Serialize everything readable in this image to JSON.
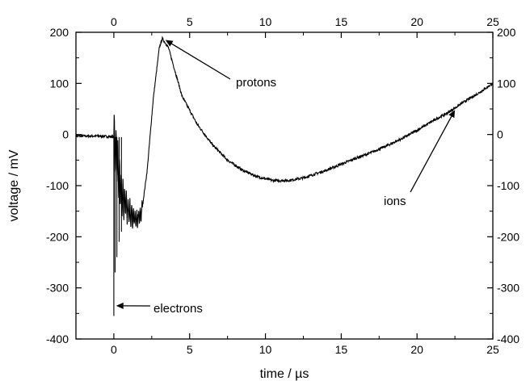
{
  "chart_data": {
    "type": "line",
    "title": "",
    "xlabel": "time / µs",
    "ylabel": "voltage / mV",
    "xlim": [
      -2.5,
      25
    ],
    "ylim": [
      -400,
      200
    ],
    "x_ticks": [
      0,
      5,
      10,
      15,
      20,
      25
    ],
    "y_ticks": [
      -400,
      -300,
      -200,
      -100,
      0,
      100,
      200
    ],
    "x_tick_labels": [
      "0",
      "5",
      "10",
      "15",
      "20",
      "25"
    ],
    "y_tick_labels": [
      "-400",
      "-300",
      "-200",
      "-100",
      "0",
      "100",
      "200"
    ],
    "mirror_axes": true,
    "grid": false,
    "series": [
      {
        "color": "#000000",
        "x": [
          -2.5,
          -1,
          -0.3,
          0,
          0.5,
          1,
          1.5,
          1.8,
          2.2,
          2.6,
          3.0,
          3.2,
          3.6,
          4.5,
          5.5,
          6.5,
          7.5,
          8.5,
          9.5,
          10.5,
          11.5,
          12.5,
          14,
          15,
          16,
          17,
          18,
          19,
          20,
          21,
          22,
          23,
          24,
          25
        ],
        "y": [
          -3,
          -3,
          -4,
          -5,
          -120,
          -150,
          -170,
          -160,
          -70,
          70,
          170,
          188,
          170,
          75,
          20,
          -20,
          -50,
          -70,
          -83,
          -90,
          -90,
          -85,
          -70,
          -58,
          -46,
          -35,
          -22,
          -8,
          8,
          26,
          42,
          62,
          80,
          100
        ]
      }
    ],
    "electron_spikes": [
      {
        "x": 0.0,
        "y": -355
      },
      {
        "x": 0.08,
        "y": -270
      },
      {
        "x": 0.2,
        "y": -240
      },
      {
        "x": 0.35,
        "y": -210
      },
      {
        "x": 0.5,
        "y": -190
      }
    ],
    "annotations": [
      {
        "id": "protons",
        "text": "protons",
        "point": [
          3.4,
          185
        ]
      },
      {
        "id": "ions",
        "text": "ions",
        "point": [
          22.5,
          48
        ]
      },
      {
        "id": "electrons",
        "text": "electrons",
        "point": [
          0.15,
          -335
        ]
      }
    ]
  }
}
